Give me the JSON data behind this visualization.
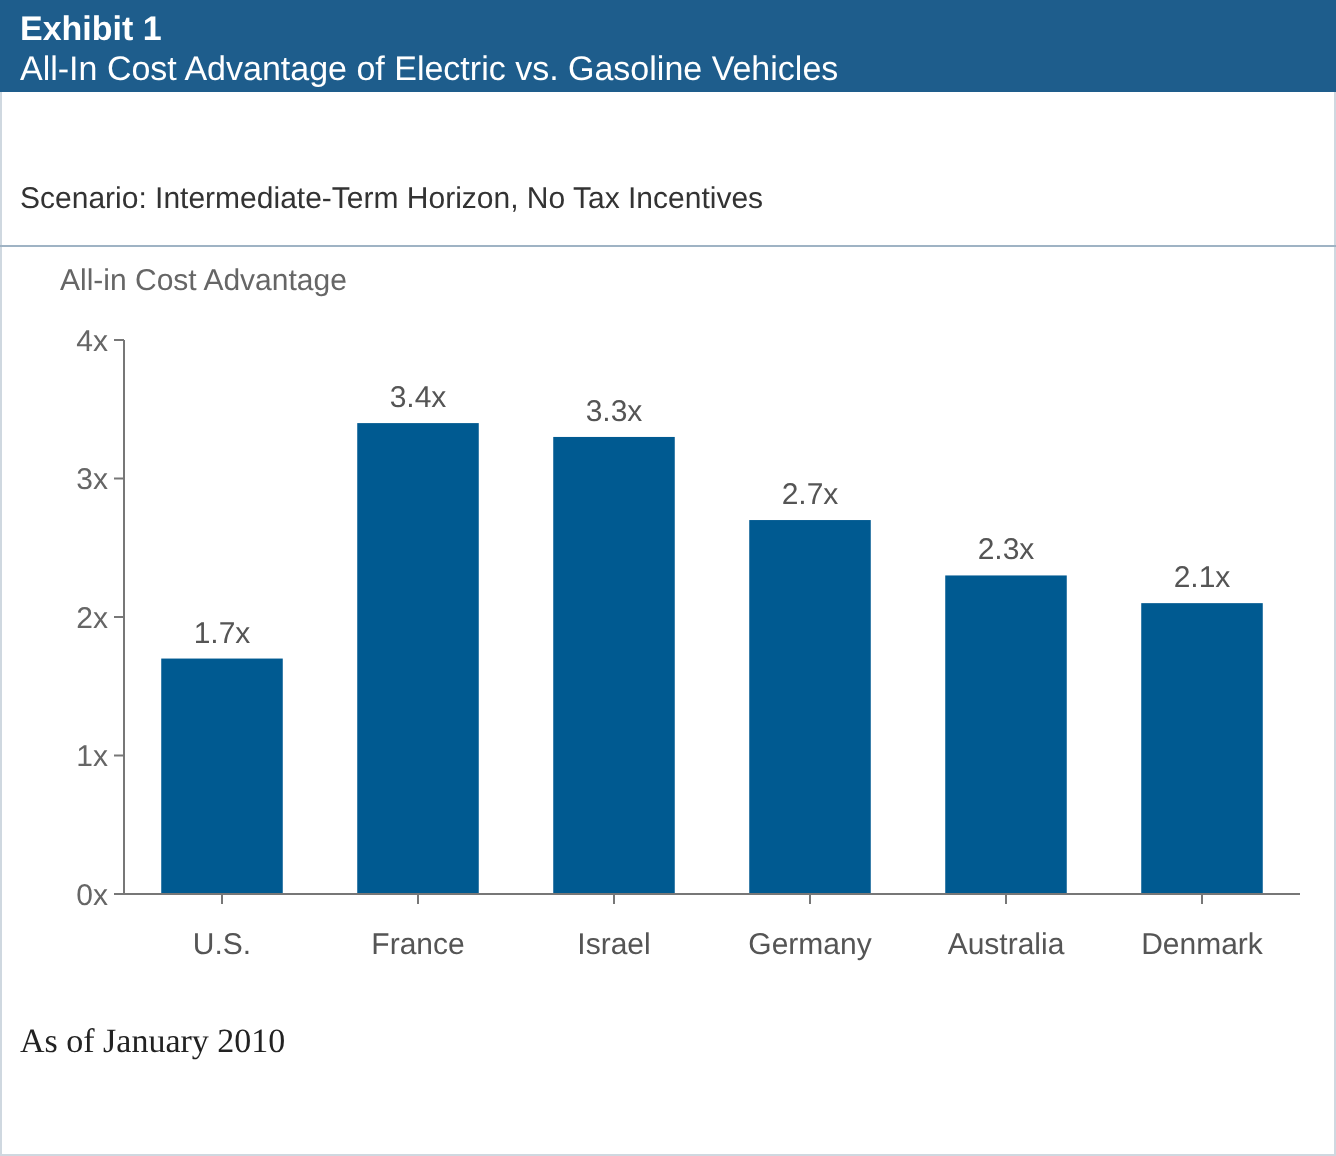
{
  "chart_data": {
    "type": "bar",
    "title": "Exhibit 1",
    "subtitle": "All-In Cost Advantage of Electric vs. Gasoline Vehicles",
    "ylabel": "All-in Cost Advantage",
    "annotations": [
      "Scenario: Intermediate-Term Horizon, No Tax Incentives",
      "As of January 2010"
    ],
    "categories": [
      "U.S.",
      "France",
      "Israel",
      "Germany",
      "Australia",
      "Denmark"
    ],
    "values": [
      1.7,
      3.4,
      3.3,
      2.7,
      2.3,
      2.1
    ],
    "value_labels": [
      "1.7x",
      "3.4x",
      "3.3x",
      "2.7x",
      "2.3x",
      "2.1x"
    ],
    "color": "#005a91",
    "ylim": [
      0,
      4
    ],
    "yticks": [
      {
        "value": 0,
        "label": "0x"
      },
      {
        "value": 1,
        "label": "1x"
      },
      {
        "value": 2,
        "label": "2x"
      },
      {
        "value": 3,
        "label": "3x"
      },
      {
        "value": 4,
        "label": "4x"
      }
    ],
    "grid": false
  }
}
